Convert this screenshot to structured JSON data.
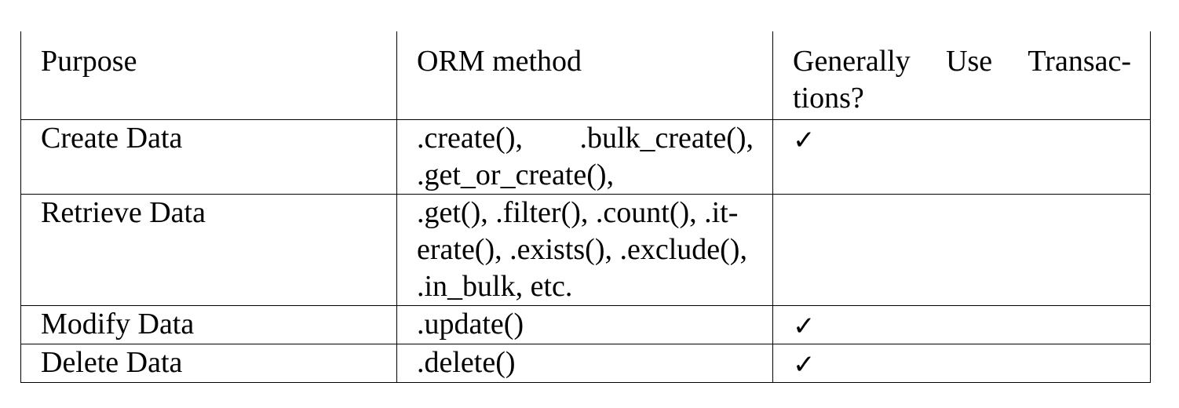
{
  "table": {
    "headers": {
      "purpose": "Purpose",
      "orm_method": "ORM method",
      "transactions_line1": [
        "Generally",
        "Use",
        "Transac-"
      ],
      "transactions_line2": "tions?"
    },
    "rows": [
      {
        "purpose": "Create Data",
        "methods_line1": [
          ".create(),",
          ".bulk_create(),"
        ],
        "methods_line2": ".get_or_create(),",
        "uses_transactions": "✓"
      },
      {
        "purpose": "Retrieve Data",
        "methods_line1": ".get(), .filter(), .count(), .it-",
        "methods_line2": "erate(), .exists(), .exclude(),",
        "methods_line3": ".in_bulk, etc.",
        "uses_transactions": ""
      },
      {
        "purpose": "Modify Data",
        "methods": ".update()",
        "uses_transactions": "✓"
      },
      {
        "purpose": "Delete Data",
        "methods": ".delete()",
        "uses_transactions": "✓"
      }
    ]
  }
}
